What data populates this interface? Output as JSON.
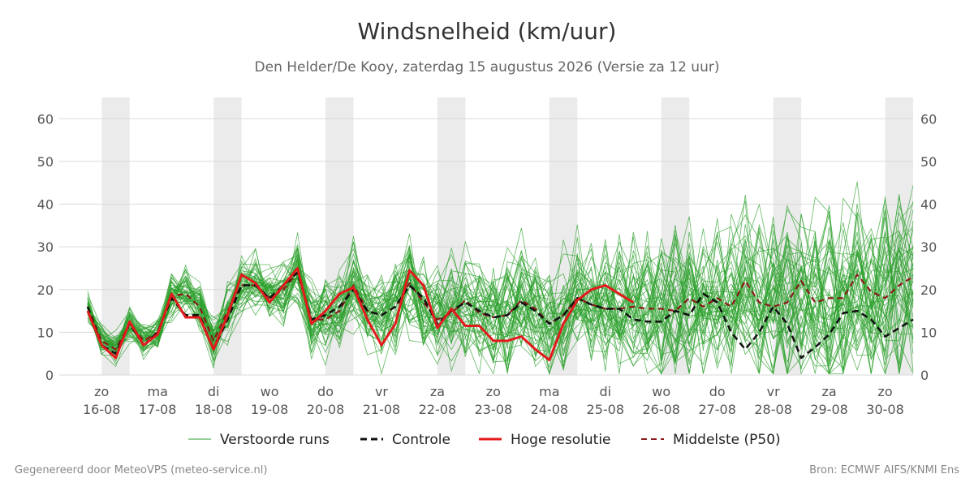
{
  "title": "Windsnelheid (km/uur)",
  "subtitle": "Den Helder/De Kooy, zaterdag 15 augustus 2026 (Versie za 12 uur)",
  "footer_left": "Gegenereerd door MeteoVPS (meteo-service.nl)",
  "footer_right": "Bron: ECMWF AIFS/KNMI Ens",
  "colors": {
    "ensemble": "#2ca02c",
    "control": "#111111",
    "high_res": "#e31a1c",
    "median": "#8b1a1a",
    "night_band": "#ebebeb",
    "grid": "#d9d9d9"
  },
  "chart_data": {
    "type": "line",
    "title": "Windsnelheid (km/uur)",
    "xlabel": "",
    "ylabel": "",
    "x_unit": "days since start",
    "x_range": [
      -0.25,
      14.5
    ],
    "ylim": [
      0,
      65
    ],
    "yticks": [
      0,
      10,
      20,
      30,
      40,
      50,
      60
    ],
    "grid": true,
    "legend_position": "bottom",
    "x_ticks": [
      {
        "x": 0,
        "day": "zo",
        "date": "16-08"
      },
      {
        "x": 1,
        "day": "ma",
        "date": "17-08"
      },
      {
        "x": 2,
        "day": "di",
        "date": "18-08"
      },
      {
        "x": 3,
        "day": "wo",
        "date": "19-08"
      },
      {
        "x": 4,
        "day": "do",
        "date": "20-08"
      },
      {
        "x": 5,
        "day": "vr",
        "date": "21-08"
      },
      {
        "x": 6,
        "day": "za",
        "date": "22-08"
      },
      {
        "x": 7,
        "day": "zo",
        "date": "23-08"
      },
      {
        "x": 8,
        "day": "ma",
        "date": "24-08"
      },
      {
        "x": 9,
        "day": "di",
        "date": "25-08"
      },
      {
        "x": 10,
        "day": "wo",
        "date": "26-08"
      },
      {
        "x": 11,
        "day": "do",
        "date": "27-08"
      },
      {
        "x": 12,
        "day": "vr",
        "date": "28-08"
      },
      {
        "x": 13,
        "day": "za",
        "date": "29-08"
      },
      {
        "x": 14,
        "day": "zo",
        "date": "30-08"
      }
    ],
    "night_bands": [
      [
        0,
        0.5
      ],
      [
        2,
        2.5
      ],
      [
        4,
        4.5
      ],
      [
        6,
        6.5
      ],
      [
        8,
        8.5
      ],
      [
        10,
        10.5
      ],
      [
        12,
        12.5
      ],
      [
        14,
        14.5
      ]
    ],
    "legend": [
      "Verstoorde runs",
      "Controle",
      "Hoge resolutie",
      "Middelste (P50)"
    ],
    "ensemble_members": 50,
    "series": [
      {
        "name": "Hoge resolutie",
        "x": [
          -0.25,
          0,
          0.25,
          0.5,
          0.75,
          1,
          1.25,
          1.5,
          1.75,
          2,
          2.25,
          2.5,
          2.75,
          3,
          3.25,
          3.5,
          3.75,
          4,
          4.25,
          4.5,
          4.75,
          5,
          5.25,
          5.5,
          5.75,
          6,
          6.25,
          6.5,
          6.75,
          7,
          7.25,
          7.5,
          7.75,
          8,
          8.25,
          8.5,
          8.75,
          9,
          9.25,
          9.5,
          9.75,
          10,
          10.25,
          10.5,
          10.75,
          11,
          11.25,
          11.5
        ],
        "values": [
          15,
          7,
          4,
          12.5,
          7,
          9.5,
          19,
          13.5,
          13.5,
          6,
          14,
          23.5,
          21.5,
          17,
          21,
          25,
          12,
          15,
          19,
          20.5,
          13,
          7,
          12,
          24.5,
          21,
          11,
          15.5,
          11.5,
          11.5,
          8,
          8,
          9,
          6,
          3.5,
          12,
          17.5,
          20,
          21,
          19,
          17,
          null,
          null,
          null,
          null,
          null,
          null,
          null,
          null
        ]
      },
      {
        "name": "Controle",
        "x": [
          -0.25,
          0,
          0.25,
          0.5,
          0.75,
          1,
          1.25,
          1.5,
          1.75,
          2,
          2.25,
          2.5,
          2.75,
          3,
          3.25,
          3.5,
          3.75,
          4,
          4.25,
          4.5,
          4.75,
          5,
          5.25,
          5.5,
          5.75,
          6,
          6.25,
          6.5,
          6.75,
          7,
          7.25,
          7.5,
          7.75,
          8,
          8.25,
          8.5,
          8.75,
          9,
          9.25,
          9.5,
          9.75,
          10,
          10.25,
          10.5,
          10.75,
          11,
          11.25,
          11.5,
          11.75,
          12,
          12.25,
          12.5,
          12.75,
          13,
          13.25,
          13.5,
          13.75,
          14,
          14.25,
          14.5
        ],
        "values": [
          16,
          7,
          5,
          12,
          7,
          10,
          18,
          14,
          14,
          6,
          13,
          21,
          21,
          18,
          21,
          24,
          13,
          14,
          16,
          20,
          15,
          14,
          16,
          21,
          18,
          12,
          15,
          17,
          15,
          13.5,
          14,
          17,
          15,
          12,
          14,
          18,
          16.5,
          15.5,
          15.5,
          13,
          12.5,
          12.5,
          15,
          14,
          19,
          17,
          10,
          6,
          10,
          16,
          12,
          4,
          6.5,
          9.5,
          14.5,
          15,
          13,
          9,
          11,
          13
        ]
      },
      {
        "name": "Middelste (P50)",
        "x": [
          -0.25,
          0,
          0.25,
          0.5,
          0.75,
          1,
          1.25,
          1.5,
          1.75,
          2,
          2.25,
          2.5,
          2.75,
          3,
          3.25,
          3.5,
          3.75,
          4,
          4.25,
          4.5,
          4.75,
          5,
          5.25,
          5.5,
          5.75,
          6,
          6.25,
          6.5,
          6.75,
          7,
          7.25,
          7.5,
          7.75,
          8,
          8.25,
          8.5,
          8.75,
          9,
          9.25,
          9.5,
          9.75,
          10,
          10.25,
          10.5,
          10.75,
          11,
          11.25,
          11.5,
          11.75,
          12,
          12.25,
          12.5,
          12.75,
          13,
          13.25,
          13.5,
          13.75,
          14,
          14.25,
          14.5
        ],
        "values": [
          16,
          8,
          6,
          12,
          8,
          10,
          18.5,
          19,
          16,
          8,
          15,
          21,
          21,
          18,
          20,
          24,
          13,
          13,
          15,
          21,
          15,
          14,
          16,
          21.5,
          17,
          13,
          14.5,
          17.5,
          14.5,
          13.5,
          14,
          17.5,
          15.5,
          12,
          14,
          18,
          16.5,
          15.5,
          15.5,
          16,
          15.5,
          15.5,
          15,
          18,
          16,
          18,
          16,
          22,
          17,
          16,
          17,
          22,
          17,
          18,
          18,
          23.5,
          19.5,
          18,
          21,
          23
        ]
      }
    ]
  }
}
